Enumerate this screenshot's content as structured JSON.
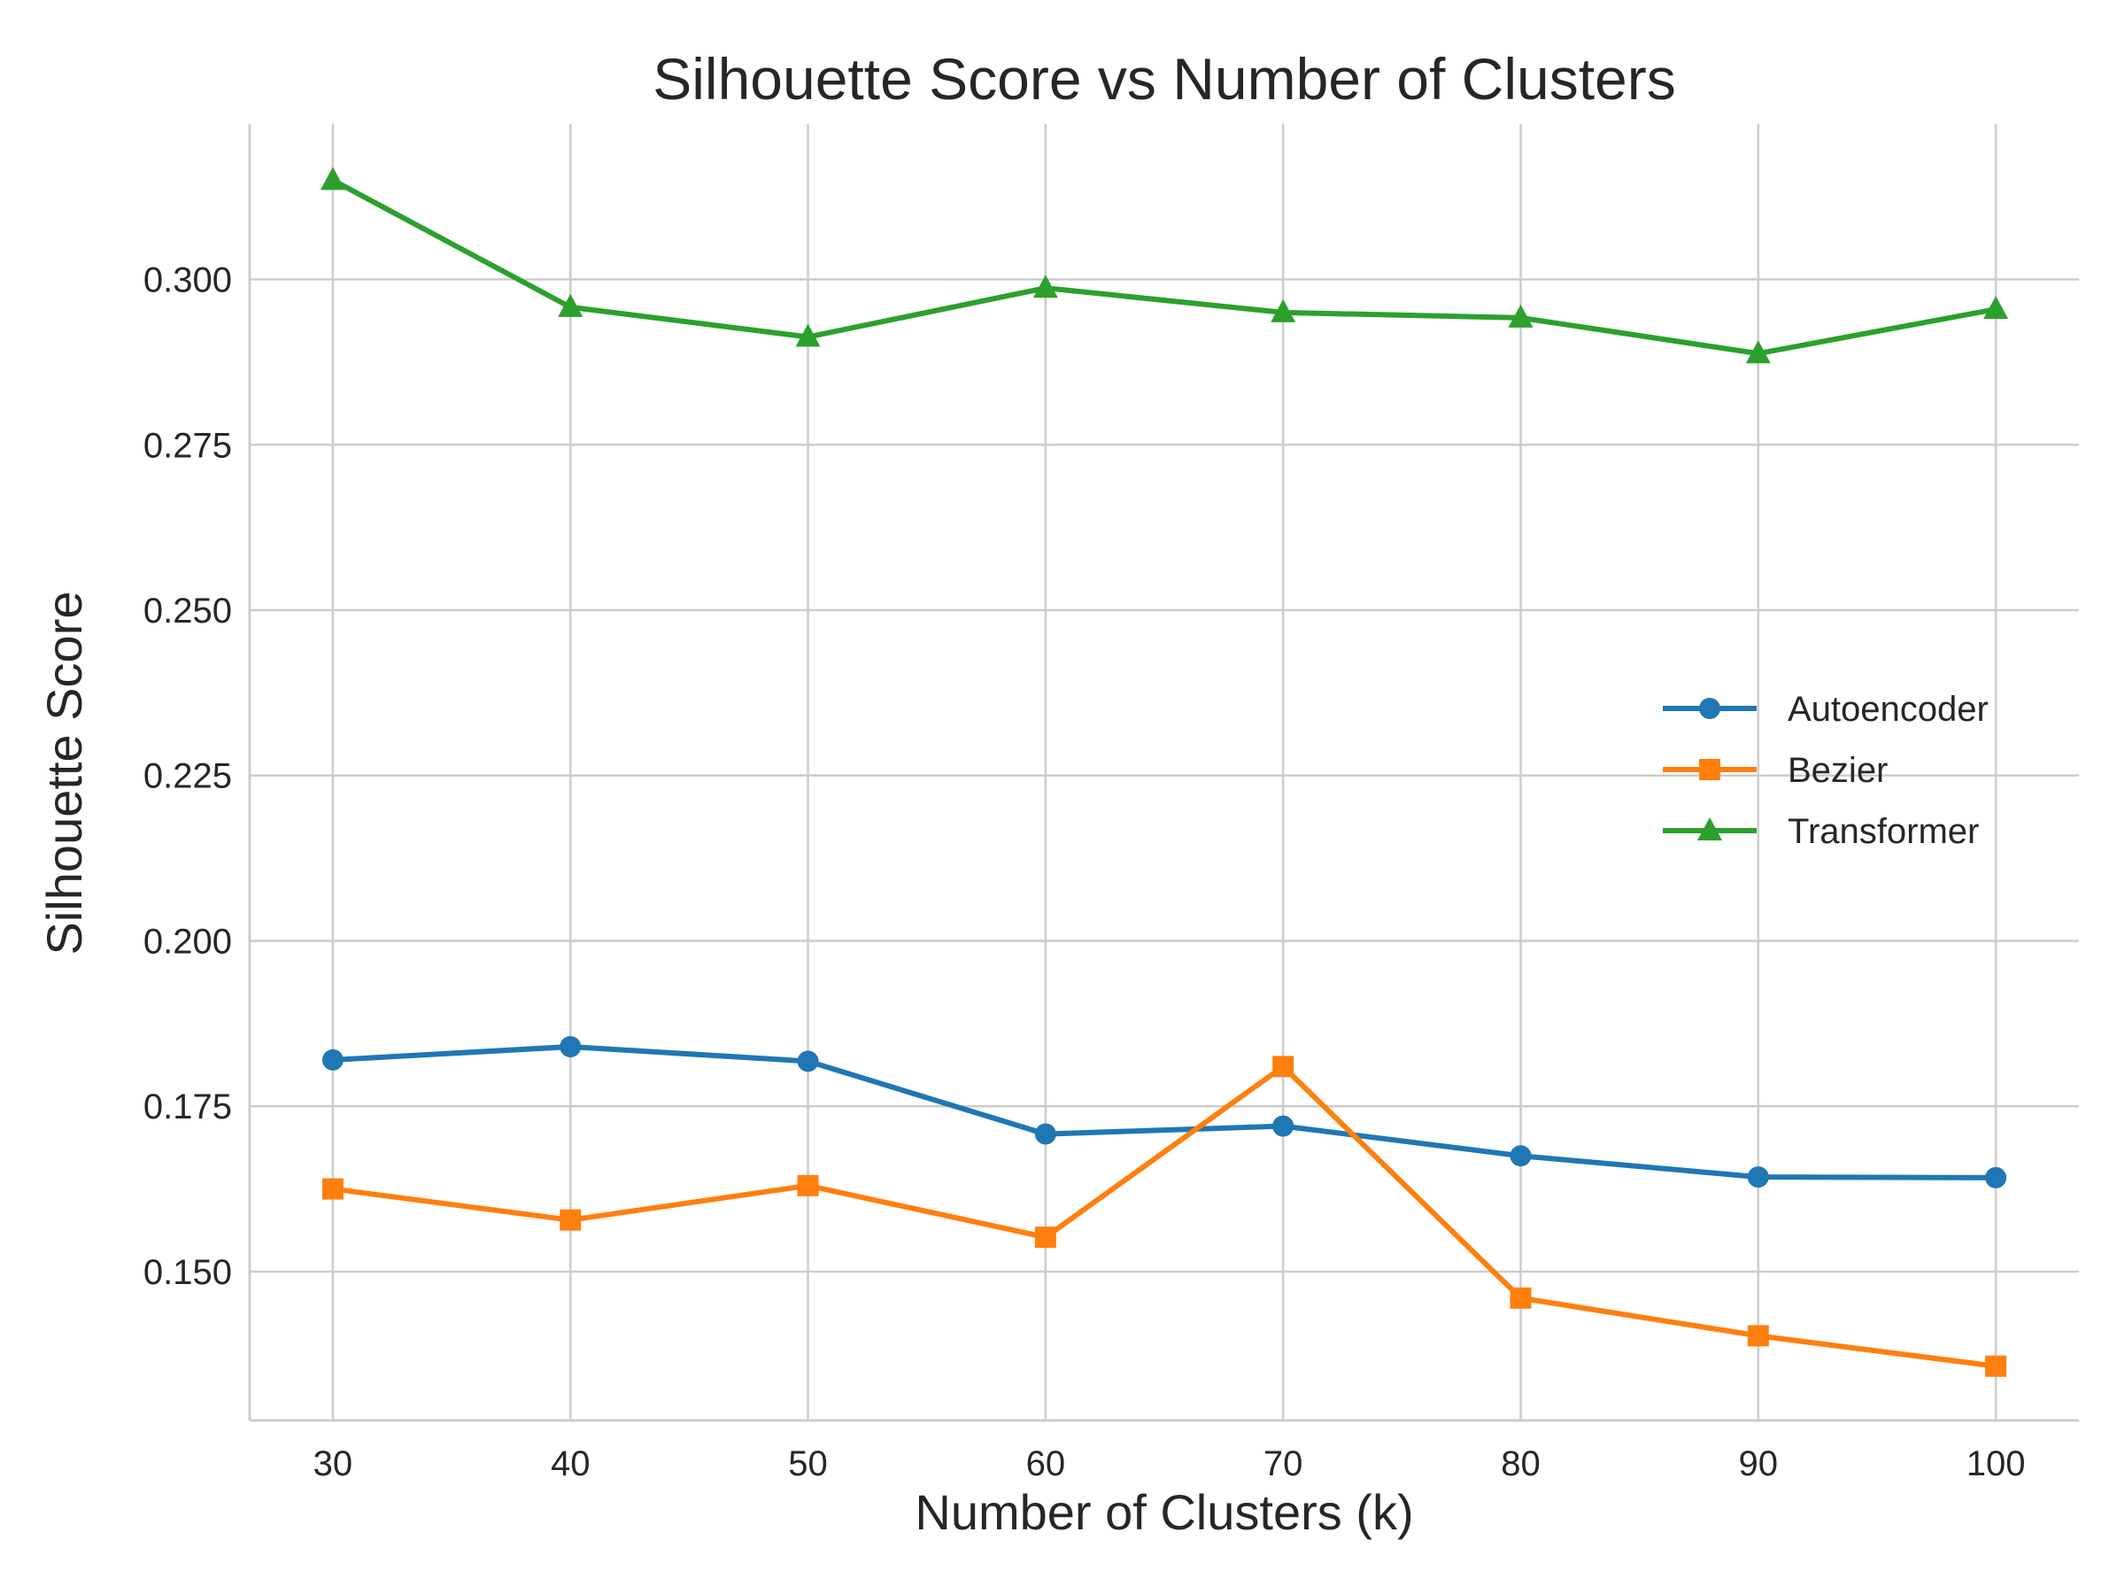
{
  "chart_data": {
    "type": "line",
    "title": "Silhouette Score vs Number of Clusters",
    "xlabel": "Number of Clusters (k)",
    "ylabel": "Silhouette Score",
    "x": [
      30,
      40,
      50,
      60,
      70,
      80,
      90,
      100
    ],
    "x_ticks": [
      "30",
      "40",
      "50",
      "60",
      "70",
      "80",
      "90",
      "100"
    ],
    "y_ticks": [
      "0.150",
      "0.175",
      "0.200",
      "0.225",
      "0.250",
      "0.275",
      "0.300"
    ],
    "xlim": [
      26.5,
      103.5
    ],
    "ylim": [
      0.1275,
      0.3235
    ],
    "grid": true,
    "legend_position": "center-right",
    "series": [
      {
        "name": "Autoencoder",
        "color": "#1f77b4",
        "marker": "circle",
        "values": [
          0.182,
          0.184,
          0.1818,
          0.1708,
          0.172,
          0.1675,
          0.1643,
          0.1642
        ]
      },
      {
        "name": "Bezier",
        "color": "#ff7f0e",
        "marker": "square",
        "values": [
          0.1625,
          0.1578,
          0.163,
          0.1552,
          0.181,
          0.146,
          0.1403,
          0.1357
        ]
      },
      {
        "name": "Transformer",
        "color": "#2ca02c",
        "marker": "triangle",
        "values": [
          0.315,
          0.2958,
          0.2913,
          0.2987,
          0.295,
          0.2942,
          0.2888,
          0.2955
        ]
      }
    ]
  }
}
